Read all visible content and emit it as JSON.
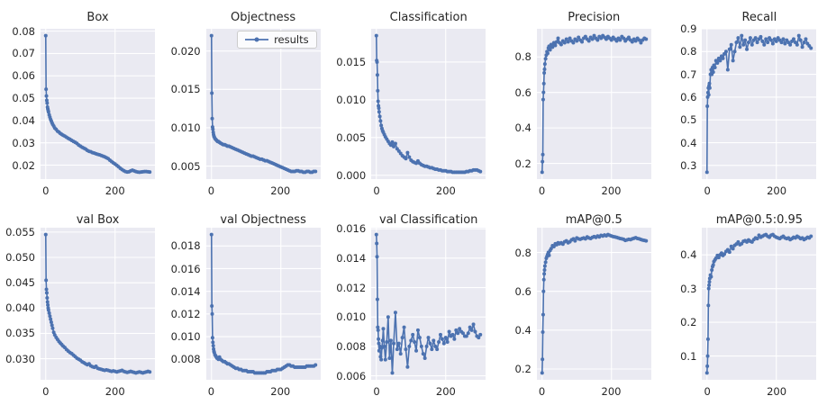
{
  "figure": {
    "background": "#ffffff",
    "axes_background": "#eaeaf2",
    "grid_color": "#ffffff",
    "line_color": "#4c72b0",
    "text_color": "#262626",
    "legend_label": "results"
  },
  "chart_data": {
    "type": "line",
    "layout": "2x5-grid",
    "series_name": "results",
    "legend_position": "upper-right-of-objectness-subplot",
    "grid": true,
    "marker": "circle",
    "xlim": [
      -15,
      315
    ],
    "xticks": [
      0,
      200
    ],
    "xtick_labels": [
      "0",
      "200"
    ],
    "x": [
      0,
      1,
      2,
      3,
      4,
      5,
      6,
      7,
      8,
      10,
      12,
      14,
      16,
      18,
      20,
      23,
      26,
      30,
      34,
      38,
      42,
      46,
      50,
      55,
      60,
      65,
      70,
      75,
      80,
      85,
      90,
      95,
      100,
      105,
      110,
      115,
      120,
      125,
      130,
      135,
      140,
      145,
      150,
      155,
      160,
      165,
      170,
      175,
      180,
      185,
      190,
      195,
      200,
      205,
      210,
      215,
      220,
      225,
      230,
      235,
      240,
      245,
      250,
      255,
      260,
      265,
      270,
      275,
      280,
      285,
      290,
      295,
      300
    ],
    "subplots": [
      {
        "title": "Box",
        "ylim": [
          0.01374,
          0.08106
        ],
        "yticks": [
          0.02,
          0.03,
          0.04,
          0.05,
          0.06,
          0.07,
          0.08
        ],
        "ytick_labels": [
          "0.02",
          "0.03",
          "0.04",
          "0.05",
          "0.06",
          "0.07",
          "0.08"
        ],
        "legend": false,
        "y": [
          0.078,
          0.054,
          0.051,
          0.049,
          0.0478,
          0.046,
          0.0452,
          0.0445,
          0.0438,
          0.0425,
          0.0415,
          0.0405,
          0.0398,
          0.039,
          0.0383,
          0.0375,
          0.0366,
          0.036,
          0.0352,
          0.0348,
          0.0342,
          0.0338,
          0.0334,
          0.033,
          0.0325,
          0.032,
          0.0316,
          0.0311,
          0.0306,
          0.0302,
          0.0297,
          0.029,
          0.0285,
          0.028,
          0.0276,
          0.0272,
          0.0266,
          0.0262,
          0.026,
          0.0256,
          0.0254,
          0.0251,
          0.0248,
          0.0246,
          0.0243,
          0.024,
          0.0237,
          0.0233,
          0.0229,
          0.0222,
          0.0216,
          0.021,
          0.0205,
          0.0199,
          0.0193,
          0.0186,
          0.018,
          0.0175,
          0.0171,
          0.0169,
          0.017,
          0.0174,
          0.0177,
          0.0174,
          0.0171,
          0.0169,
          0.0168,
          0.0169,
          0.017,
          0.0171,
          0.0171,
          0.017,
          0.0169
        ]
      },
      {
        "title": "Objectness",
        "ylim": [
          0.00331,
          0.02289
        ],
        "yticks": [
          0.005,
          0.01,
          0.015,
          0.02
        ],
        "ytick_labels": [
          "0.005",
          "0.010",
          "0.015",
          "0.020"
        ],
        "legend": true,
        "y": [
          0.022,
          0.0145,
          0.0112,
          0.0101,
          0.0098,
          0.0094,
          0.0091,
          0.0089,
          0.0088,
          0.0086,
          0.0085,
          0.0084,
          0.0083,
          0.0082,
          0.0082,
          0.0081,
          0.008,
          0.0079,
          0.0078,
          0.0078,
          0.0077,
          0.0076,
          0.0076,
          0.0075,
          0.0074,
          0.0073,
          0.0072,
          0.0071,
          0.007,
          0.0069,
          0.0068,
          0.0067,
          0.0066,
          0.0065,
          0.0064,
          0.0063,
          0.0063,
          0.0062,
          0.0061,
          0.006,
          0.0059,
          0.0059,
          0.0058,
          0.0057,
          0.0057,
          0.0056,
          0.0055,
          0.0054,
          0.0053,
          0.0052,
          0.0051,
          0.005,
          0.0049,
          0.0048,
          0.0047,
          0.0046,
          0.0045,
          0.0044,
          0.0043,
          0.0043,
          0.0043,
          0.0044,
          0.0044,
          0.0043,
          0.0043,
          0.0042,
          0.0042,
          0.0043,
          0.0043,
          0.0042,
          0.0042,
          0.0043,
          0.0043
        ]
      },
      {
        "title": "Classification",
        "ylim": [
          -0.000505,
          0.019405
        ],
        "yticks": [
          0.0,
          0.005,
          0.01,
          0.015
        ],
        "ytick_labels": [
          "0.000",
          "0.005",
          "0.010",
          "0.015"
        ],
        "legend": false,
        "y": [
          0.0185,
          0.0152,
          0.015,
          0.0133,
          0.0112,
          0.0098,
          0.0092,
          0.0089,
          0.0084,
          0.0078,
          0.0072,
          0.0066,
          0.0062,
          0.0059,
          0.0057,
          0.0054,
          0.0051,
          0.0048,
          0.0045,
          0.0042,
          0.004,
          0.0044,
          0.0038,
          0.0042,
          0.0035,
          0.0032,
          0.0029,
          0.0026,
          0.0024,
          0.0022,
          0.003,
          0.0024,
          0.002,
          0.0018,
          0.0017,
          0.0016,
          0.0019,
          0.0016,
          0.0014,
          0.0013,
          0.0012,
          0.0012,
          0.0011,
          0.001,
          0.001,
          0.0009,
          0.0008,
          0.0008,
          0.0007,
          0.0007,
          0.0006,
          0.0006,
          0.0006,
          0.0005,
          0.0005,
          0.0005,
          0.0004,
          0.0004,
          0.0004,
          0.0004,
          0.0004,
          0.0004,
          0.0004,
          0.0004,
          0.0005,
          0.0005,
          0.0006,
          0.0006,
          0.0007,
          0.0007,
          0.0007,
          0.0006,
          0.0005
        ]
      },
      {
        "title": "Precision",
        "ylim": [
          0.1115,
          0.9585
        ],
        "yticks": [
          0.2,
          0.4,
          0.6,
          0.8
        ],
        "ytick_labels": [
          "0.2",
          "0.4",
          "0.6",
          "0.8"
        ],
        "legend": false,
        "y": [
          0.15,
          0.21,
          0.25,
          0.56,
          0.6,
          0.65,
          0.71,
          0.73,
          0.76,
          0.79,
          0.81,
          0.83,
          0.82,
          0.85,
          0.86,
          0.84,
          0.87,
          0.855,
          0.88,
          0.865,
          0.885,
          0.905,
          0.88,
          0.87,
          0.89,
          0.88,
          0.9,
          0.885,
          0.905,
          0.89,
          0.88,
          0.9,
          0.89,
          0.91,
          0.895,
          0.885,
          0.905,
          0.915,
          0.9,
          0.89,
          0.91,
          0.9,
          0.92,
          0.905,
          0.895,
          0.915,
          0.905,
          0.92,
          0.91,
          0.9,
          0.915,
          0.905,
          0.895,
          0.91,
          0.9,
          0.89,
          0.905,
          0.895,
          0.915,
          0.905,
          0.89,
          0.9,
          0.91,
          0.895,
          0.885,
          0.9,
          0.89,
          0.905,
          0.895,
          0.88,
          0.895,
          0.905,
          0.9
        ]
      },
      {
        "title": "Recall",
        "ylim": [
          0.24,
          0.9
        ],
        "yticks": [
          0.3,
          0.4,
          0.5,
          0.6,
          0.7,
          0.8,
          0.9
        ],
        "ytick_labels": [
          "0.3",
          "0.4",
          "0.5",
          "0.6",
          "0.7",
          "0.8",
          "0.9"
        ],
        "legend": false,
        "y": [
          0.27,
          0.56,
          0.6,
          0.62,
          0.64,
          0.61,
          0.65,
          0.66,
          0.64,
          0.7,
          0.72,
          0.7,
          0.73,
          0.71,
          0.74,
          0.73,
          0.76,
          0.75,
          0.77,
          0.76,
          0.78,
          0.77,
          0.79,
          0.8,
          0.72,
          0.81,
          0.83,
          0.76,
          0.8,
          0.84,
          0.86,
          0.82,
          0.87,
          0.83,
          0.85,
          0.81,
          0.84,
          0.86,
          0.83,
          0.85,
          0.86,
          0.84,
          0.855,
          0.865,
          0.845,
          0.83,
          0.855,
          0.84,
          0.86,
          0.85,
          0.835,
          0.855,
          0.845,
          0.86,
          0.85,
          0.84,
          0.855,
          0.835,
          0.85,
          0.84,
          0.83,
          0.845,
          0.855,
          0.84,
          0.83,
          0.87,
          0.85,
          0.82,
          0.84,
          0.855,
          0.835,
          0.825,
          0.815
        ]
      },
      {
        "title": "val Box",
        "ylim": [
          0.025835,
          0.055865
        ],
        "yticks": [
          0.03,
          0.035,
          0.04,
          0.045,
          0.05,
          0.055
        ],
        "ytick_labels": [
          "0.030",
          "0.035",
          "0.040",
          "0.045",
          "0.050",
          "0.055"
        ],
        "legend": false,
        "y": [
          0.0545,
          0.0455,
          0.0437,
          0.043,
          0.042,
          0.0412,
          0.0406,
          0.04,
          0.0396,
          0.039,
          0.0384,
          0.0378,
          0.0372,
          0.0366,
          0.036,
          0.0352,
          0.0347,
          0.0342,
          0.0338,
          0.0334,
          0.0331,
          0.0328,
          0.0325,
          0.0322,
          0.0318,
          0.0315,
          0.0312,
          0.031,
          0.0307,
          0.0304,
          0.0301,
          0.0299,
          0.0297,
          0.0294,
          0.0292,
          0.029,
          0.0288,
          0.029,
          0.0286,
          0.0284,
          0.0283,
          0.0285,
          0.0281,
          0.028,
          0.0279,
          0.0278,
          0.0277,
          0.0278,
          0.0277,
          0.0276,
          0.0275,
          0.0276,
          0.0275,
          0.0274,
          0.0275,
          0.0276,
          0.0277,
          0.0275,
          0.0274,
          0.0273,
          0.0274,
          0.0275,
          0.0274,
          0.0273,
          0.0272,
          0.0273,
          0.0274,
          0.0273,
          0.0272,
          0.0273,
          0.0274,
          0.0275,
          0.0274
        ]
      },
      {
        "title": "val Objectness",
        "ylim": [
          0.00619,
          0.01961
        ],
        "yticks": [
          0.008,
          0.01,
          0.012,
          0.014,
          0.016,
          0.018
        ],
        "ytick_labels": [
          "0.008",
          "0.010",
          "0.012",
          "0.014",
          "0.016",
          "0.018"
        ],
        "legend": false,
        "y": [
          0.019,
          0.0127,
          0.012,
          0.0099,
          0.0095,
          0.0092,
          0.0089,
          0.0087,
          0.0086,
          0.0084,
          0.0083,
          0.0082,
          0.0081,
          0.0081,
          0.008,
          0.0082,
          0.008,
          0.0079,
          0.0078,
          0.0078,
          0.0077,
          0.0076,
          0.0076,
          0.0075,
          0.0074,
          0.0073,
          0.0072,
          0.0072,
          0.0071,
          0.0071,
          0.007,
          0.007,
          0.007,
          0.0069,
          0.0069,
          0.0069,
          0.0069,
          0.0068,
          0.0068,
          0.0068,
          0.0068,
          0.0068,
          0.0068,
          0.0068,
          0.0069,
          0.0069,
          0.0069,
          0.007,
          0.007,
          0.007,
          0.0071,
          0.0071,
          0.0071,
          0.0072,
          0.0073,
          0.0074,
          0.0075,
          0.0075,
          0.0074,
          0.0074,
          0.0073,
          0.0073,
          0.0073,
          0.0073,
          0.0073,
          0.0073,
          0.0073,
          0.0074,
          0.0074,
          0.0074,
          0.0074,
          0.0074,
          0.0075
        ]
      },
      {
        "title": "val Classification",
        "ylim": [
          0.00573,
          0.01607
        ],
        "yticks": [
          0.006,
          0.008,
          0.01,
          0.012,
          0.014,
          0.016
        ],
        "ytick_labels": [
          "0.006",
          "0.008",
          "0.010",
          "0.012",
          "0.014",
          "0.016"
        ],
        "legend": false,
        "y": [
          0.0156,
          0.015,
          0.0141,
          0.0112,
          0.0093,
          0.0091,
          0.0085,
          0.0082,
          0.0077,
          0.008,
          0.0073,
          0.0071,
          0.0079,
          0.0084,
          0.0092,
          0.008,
          0.0071,
          0.0083,
          0.01,
          0.0072,
          0.0084,
          0.0062,
          0.0082,
          0.0103,
          0.0078,
          0.0082,
          0.0075,
          0.0086,
          0.0093,
          0.0078,
          0.0066,
          0.008,
          0.0084,
          0.0088,
          0.0083,
          0.0077,
          0.0091,
          0.0086,
          0.008,
          0.0075,
          0.0072,
          0.008,
          0.0086,
          0.0082,
          0.0078,
          0.0084,
          0.008,
          0.0078,
          0.0083,
          0.0088,
          0.0085,
          0.0082,
          0.0086,
          0.0083,
          0.009,
          0.0087,
          0.0088,
          0.0085,
          0.0091,
          0.0089,
          0.0092,
          0.009,
          0.0089,
          0.0087,
          0.0087,
          0.0089,
          0.0093,
          0.0091,
          0.0095,
          0.009,
          0.0087,
          0.0086,
          0.0088
        ]
      },
      {
        "title": "mAP@0.5",
        "ylim": [
          0.1444,
          0.9276
        ],
        "yticks": [
          0.2,
          0.4,
          0.6,
          0.8
        ],
        "ytick_labels": [
          "0.2",
          "0.4",
          "0.6",
          "0.8"
        ],
        "legend": false,
        "y": [
          0.18,
          0.25,
          0.39,
          0.48,
          0.6,
          0.66,
          0.69,
          0.71,
          0.73,
          0.75,
          0.77,
          0.78,
          0.79,
          0.8,
          0.785,
          0.81,
          0.82,
          0.835,
          0.83,
          0.845,
          0.84,
          0.85,
          0.845,
          0.85,
          0.843,
          0.855,
          0.86,
          0.85,
          0.855,
          0.865,
          0.87,
          0.86,
          0.875,
          0.87,
          0.868,
          0.872,
          0.875,
          0.87,
          0.88,
          0.875,
          0.872,
          0.878,
          0.882,
          0.878,
          0.885,
          0.88,
          0.888,
          0.885,
          0.89,
          0.886,
          0.892,
          0.888,
          0.885,
          0.882,
          0.88,
          0.878,
          0.875,
          0.872,
          0.87,
          0.868,
          0.862,
          0.865,
          0.868,
          0.866,
          0.87,
          0.873,
          0.876,
          0.872,
          0.87,
          0.867,
          0.864,
          0.862,
          0.86
        ]
      },
      {
        "title": "mAP@0.5:0.95",
        "ylim": [
          0.0295,
          0.4805
        ],
        "yticks": [
          0.1,
          0.2,
          0.3,
          0.4
        ],
        "ytick_labels": [
          "0.1",
          "0.2",
          "0.3",
          "0.4"
        ],
        "legend": false,
        "y": [
          0.05,
          0.07,
          0.1,
          0.15,
          0.25,
          0.3,
          0.31,
          0.32,
          0.33,
          0.34,
          0.335,
          0.355,
          0.365,
          0.37,
          0.38,
          0.385,
          0.39,
          0.398,
          0.392,
          0.4,
          0.405,
          0.398,
          0.402,
          0.41,
          0.415,
          0.408,
          0.425,
          0.418,
          0.428,
          0.432,
          0.438,
          0.43,
          0.433,
          0.44,
          0.442,
          0.438,
          0.444,
          0.44,
          0.438,
          0.445,
          0.45,
          0.448,
          0.458,
          0.452,
          0.455,
          0.458,
          0.46,
          0.455,
          0.452,
          0.458,
          0.46,
          0.455,
          0.452,
          0.45,
          0.448,
          0.452,
          0.455,
          0.45,
          0.448,
          0.45,
          0.445,
          0.448,
          0.452,
          0.45,
          0.455,
          0.452,
          0.448,
          0.45,
          0.445,
          0.448,
          0.452,
          0.45,
          0.455
        ]
      }
    ]
  }
}
